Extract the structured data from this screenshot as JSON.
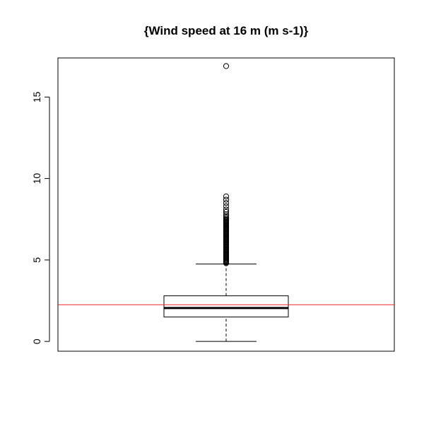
{
  "chart_data": {
    "type": "boxplot",
    "title": "{Wind speed at 16 m (m s-1)}",
    "xlabel": "",
    "ylabel": "",
    "ylim": [
      -0.6,
      17.4
    ],
    "y_ticks": [
      0,
      5,
      10,
      15
    ],
    "y_tick_labels": [
      "0",
      "5",
      "10",
      "15"
    ],
    "box": {
      "whisker_low": 0,
      "q1": 1.5,
      "median": 2.05,
      "q3": 2.8,
      "whisker_high": 4.75
    },
    "outliers": [
      4.8,
      4.85,
      4.9,
      4.95,
      5.0,
      5.05,
      5.1,
      5.15,
      5.2,
      5.25,
      5.3,
      5.35,
      5.4,
      5.45,
      5.5,
      5.55,
      5.6,
      5.65,
      5.7,
      5.75,
      5.8,
      5.85,
      5.9,
      5.95,
      6.0,
      6.05,
      6.1,
      6.15,
      6.2,
      6.25,
      6.3,
      6.35,
      6.4,
      6.45,
      6.5,
      6.55,
      6.6,
      6.65,
      6.7,
      6.75,
      6.8,
      6.85,
      6.9,
      6.95,
      7.0,
      7.05,
      7.1,
      7.15,
      7.2,
      7.25,
      7.3,
      7.35,
      7.4,
      7.45,
      7.5,
      7.6,
      7.7,
      7.8,
      7.95,
      8.1,
      8.3,
      8.5,
      8.7,
      8.9,
      16.9
    ],
    "reference_line": {
      "value": 2.25,
      "color": "#e8282b"
    },
    "colors": {
      "box": "#000000",
      "reference": "#e8282b",
      "background": "#ffffff"
    },
    "grid": false
  }
}
